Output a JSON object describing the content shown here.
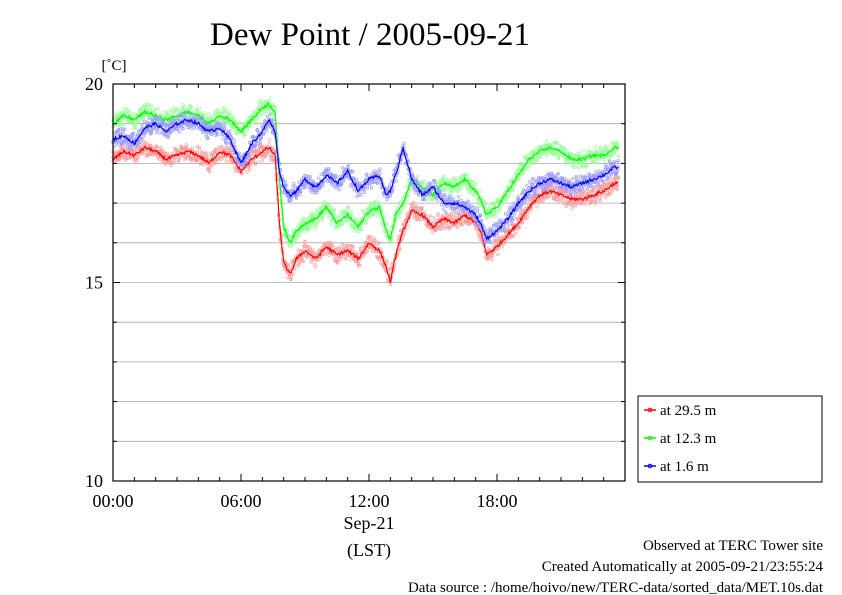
{
  "chart_data": {
    "type": "line",
    "title": "Dew Point / 2005-09-21",
    "ylabel": "[˚C]",
    "xlabel": "Sep-21",
    "xlabel2": "(LST)",
    "xlim": [
      0,
      24
    ],
    "ylim": [
      10,
      20
    ],
    "x_ticks": [
      {
        "value": 0,
        "label": "00:00"
      },
      {
        "value": 6,
        "label": "06:00"
      },
      {
        "value": 12,
        "label": "12:00"
      },
      {
        "value": 18,
        "label": "18:00"
      }
    ],
    "y_ticks": [
      {
        "value": 10,
        "label": "10"
      },
      {
        "value": 15,
        "label": "15"
      },
      {
        "value": 20,
        "label": "20"
      }
    ],
    "grid": true,
    "legend_position": "bottom-right, outside plot",
    "series": [
      {
        "name": "at 29.5 m",
        "color": "#ff0000",
        "x": [
          0,
          0.5,
          1,
          1.5,
          2,
          2.5,
          3,
          3.5,
          4,
          4.5,
          5,
          5.5,
          6,
          6.5,
          7,
          7.3,
          7.6,
          7.8,
          8.0,
          8.3,
          8.6,
          9,
          9.5,
          10,
          10.5,
          11,
          11.5,
          12,
          12.5,
          12.8,
          13.0,
          13.3,
          13.6,
          14,
          14.5,
          15,
          15.5,
          16,
          16.5,
          17,
          17.3,
          17.5,
          18,
          18.5,
          19,
          19.5,
          20,
          20.5,
          21,
          21.5,
          22,
          22.5,
          23,
          23.5
        ],
        "values": [
          18.1,
          18.3,
          18.2,
          18.4,
          18.3,
          18.1,
          18.2,
          18.3,
          18.2,
          18.0,
          18.3,
          18.2,
          17.8,
          18.1,
          18.3,
          18.4,
          18.2,
          16.5,
          15.5,
          15.2,
          15.6,
          15.8,
          15.6,
          15.9,
          15.7,
          15.8,
          15.6,
          16.0,
          15.8,
          15.4,
          15.0,
          15.8,
          16.3,
          16.8,
          16.7,
          16.4,
          16.6,
          16.5,
          16.7,
          16.5,
          16.2,
          15.7,
          15.9,
          16.2,
          16.5,
          16.9,
          17.2,
          17.3,
          17.2,
          17.1,
          17.1,
          17.2,
          17.3,
          17.5
        ]
      },
      {
        "name": "at 12.3 m",
        "color": "#00ff00",
        "x": [
          0,
          0.5,
          1,
          1.5,
          2,
          2.5,
          3,
          3.5,
          4,
          4.5,
          5,
          5.5,
          6,
          6.5,
          7,
          7.3,
          7.6,
          7.8,
          8.0,
          8.3,
          8.6,
          9,
          9.5,
          10,
          10.5,
          11,
          11.5,
          12,
          12.5,
          12.8,
          13.0,
          13.3,
          13.6,
          14,
          14.5,
          15,
          15.5,
          16,
          16.5,
          17,
          17.3,
          17.5,
          18,
          18.5,
          19,
          19.5,
          20,
          20.5,
          21,
          21.5,
          22,
          22.5,
          23,
          23.5
        ],
        "values": [
          19.0,
          19.2,
          19.1,
          19.3,
          19.2,
          19.1,
          19.2,
          19.3,
          19.2,
          19.0,
          19.2,
          19.1,
          18.8,
          19.1,
          19.4,
          19.5,
          19.3,
          17.6,
          16.4,
          16.0,
          16.3,
          16.5,
          16.6,
          16.9,
          16.5,
          16.7,
          16.4,
          16.8,
          16.9,
          16.3,
          16.1,
          16.8,
          17.0,
          17.6,
          17.4,
          17.2,
          17.5,
          17.4,
          17.6,
          17.3,
          17.0,
          16.7,
          16.9,
          17.3,
          17.7,
          18.1,
          18.3,
          18.4,
          18.3,
          18.1,
          18.1,
          18.2,
          18.2,
          18.4
        ]
      },
      {
        "name": "at 1.6 m",
        "color": "#0000ff",
        "x": [
          0,
          0.5,
          1,
          1.5,
          2,
          2.5,
          3,
          3.5,
          4,
          4.5,
          5,
          5.5,
          6,
          6.5,
          7,
          7.3,
          7.6,
          7.8,
          8.0,
          8.3,
          8.6,
          9,
          9.5,
          10,
          10.5,
          11,
          11.5,
          12,
          12.5,
          12.8,
          13.0,
          13.3,
          13.6,
          14,
          14.5,
          15,
          15.5,
          16,
          16.5,
          17,
          17.3,
          17.5,
          18,
          18.5,
          19,
          19.5,
          20,
          20.5,
          21,
          21.5,
          22,
          22.5,
          23,
          23.5
        ],
        "values": [
          18.6,
          18.7,
          18.5,
          18.9,
          19.0,
          18.8,
          19.0,
          19.1,
          19.0,
          18.8,
          18.9,
          18.6,
          18.0,
          18.5,
          18.8,
          19.1,
          18.8,
          17.8,
          17.4,
          17.2,
          17.3,
          17.6,
          17.4,
          17.7,
          17.5,
          17.8,
          17.3,
          17.6,
          17.7,
          17.2,
          17.3,
          17.8,
          18.4,
          17.6,
          17.2,
          17.4,
          17.0,
          17.0,
          16.9,
          16.7,
          16.4,
          16.1,
          16.3,
          16.6,
          17.0,
          17.3,
          17.5,
          17.6,
          17.5,
          17.4,
          17.5,
          17.6,
          17.7,
          17.9
        ]
      }
    ]
  },
  "footer": {
    "line1": "Observed at TERC Tower site",
    "line2": "Created Automatically at 2005-09-21/23:55:24",
    "line3": "Data source : /home/hoivo/new/TERC-data/sorted_data/MET.10s.dat"
  }
}
